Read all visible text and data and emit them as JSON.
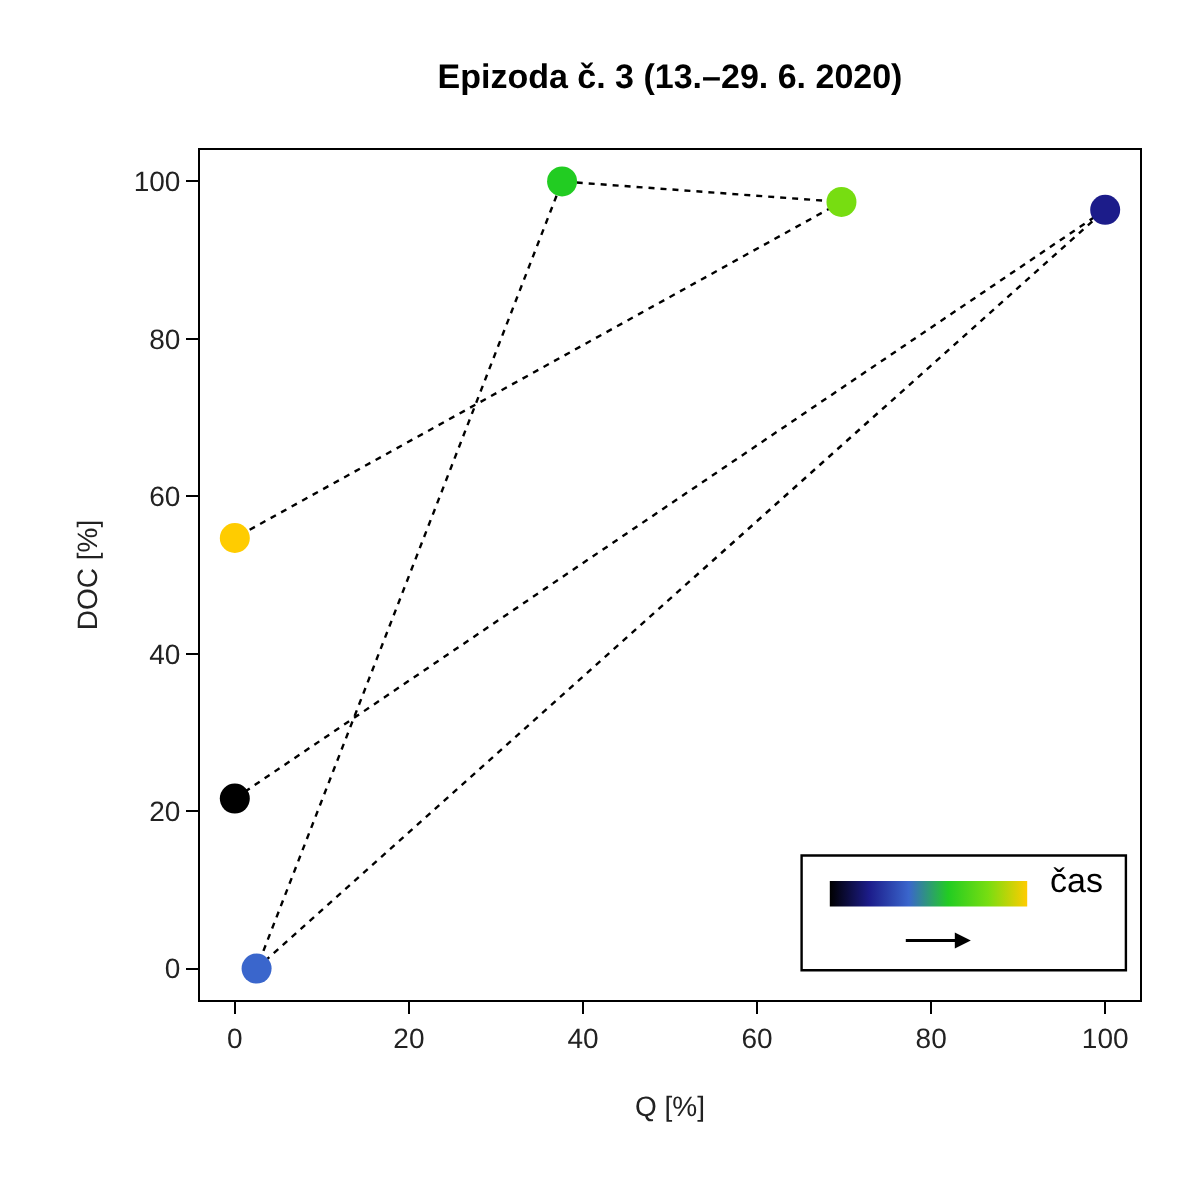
{
  "chart_data": {
    "type": "line",
    "title": "Epizoda č. 3 (13.–29. 6. 2020)",
    "xlabel": "Q [%]",
    "ylabel": "DOC [%]",
    "x": [
      0,
      100,
      2.5,
      37.6,
      69.7,
      0
    ],
    "series": [
      {
        "values": [
          21.6,
          96.4,
          0,
          100,
          97.4,
          54.7
        ],
        "colors": [
          "#000000",
          "#1c1c8a",
          "#3a66cc",
          "#22cc22",
          "#77dd11",
          "#ffcc00"
        ]
      }
    ],
    "marker": "circle",
    "line_style": "dotted",
    "xlim": [
      -4,
      104
    ],
    "ylim": [
      -4,
      104
    ],
    "xticks": [
      0,
      20,
      40,
      60,
      80,
      100
    ],
    "yticks": [
      0,
      20,
      40,
      60,
      80,
      100
    ],
    "annotations": [
      "čas"
    ]
  }
}
